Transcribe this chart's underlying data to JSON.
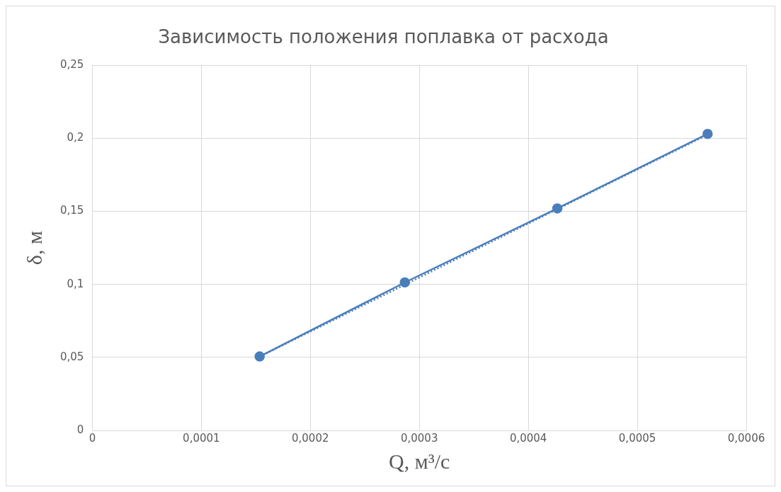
{
  "chart_data": {
    "type": "line",
    "title": "Зависимость положения поплавка от расхода",
    "xlabel": "Q, м³/с",
    "ylabel": "δ, м",
    "series": [
      {
        "type": "line",
        "color": "#4a7ebb",
        "marker": "circle",
        "line_style": "solid",
        "x": [
          0.0001535,
          0.0002867,
          0.0004266,
          0.0005645
        ],
        "values": [
          0.0506,
          0.1013,
          0.152,
          0.203
        ]
      },
      {
        "type": "line",
        "color": "#4a7ebb",
        "marker": "none",
        "line_style": "dotted",
        "x": [
          0.0001535,
          0.0005645
        ],
        "values": [
          0.0505,
          0.2025
        ]
      }
    ],
    "xlim": [
      0,
      0.0006
    ],
    "xticks": [
      0,
      {
        "value": 0.0001,
        "label": "0,0001"
      },
      {
        "value": 0.0002,
        "label": "0,0002"
      },
      {
        "value": 0.0003,
        "label": "0,0003"
      },
      {
        "value": 0.0004,
        "label": "0,0004"
      },
      {
        "value": 0.0005,
        "label": "0,0005"
      },
      {
        "value": 0.0006,
        "label": "0,0006"
      }
    ],
    "ylim": [
      0,
      0.25
    ],
    "yticks": [
      0,
      {
        "value": 0.05,
        "label": "0,05"
      },
      {
        "value": 0.1,
        "label": "0,1"
      },
      {
        "value": 0.15,
        "label": "0,15"
      },
      {
        "value": 0.2,
        "label": "0,2"
      },
      {
        "value": 0.25,
        "label": "0,25"
      }
    ],
    "grid": true,
    "legend": false
  }
}
